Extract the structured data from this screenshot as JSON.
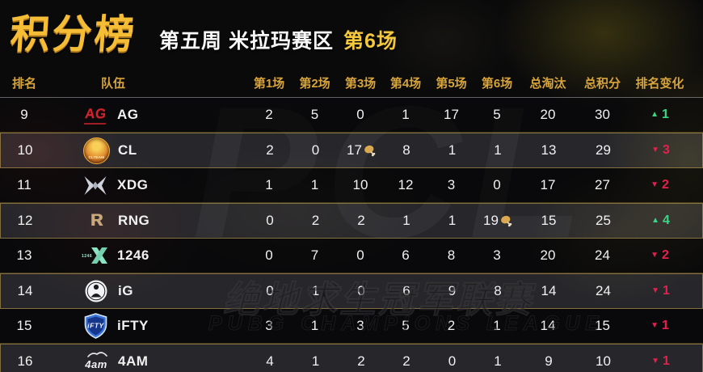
{
  "title": {
    "main": "积分榜",
    "week": "第五周 米拉玛赛区",
    "game": "第6场"
  },
  "watermarks": {
    "cn": "绝地求生冠军联赛",
    "en": "PUBG CHAMPIONS LEAGUE",
    "big": "PCL"
  },
  "colors": {
    "header_gold": "#d7a43c",
    "title_gold": "#f5bd35",
    "up_green": "#3ed488",
    "down_red": "#e3214e",
    "row_text": "#f1f1f2"
  },
  "table": {
    "headers": [
      "排名",
      "队伍",
      "第1场",
      "第2场",
      "第3场",
      "第4场",
      "第5场",
      "第6场",
      "总淘汰",
      "总积分",
      "排名变化"
    ],
    "rows": [
      {
        "rank": "9",
        "team": "AG",
        "logo_style": "ag",
        "logo_text": "AG",
        "scores": [
          "2",
          "5",
          "0",
          "1",
          "17",
          "5"
        ],
        "chicken_index": -1,
        "total_elims": "20",
        "total_points": "30",
        "change_dir": "up",
        "change_value": "1"
      },
      {
        "rank": "10",
        "team": "CL",
        "logo_style": "cl",
        "logo_text": "CLTEAM",
        "scores": [
          "2",
          "0",
          "17",
          "8",
          "1",
          "1"
        ],
        "chicken_index": 2,
        "total_elims": "13",
        "total_points": "29",
        "change_dir": "down",
        "change_value": "3"
      },
      {
        "rank": "11",
        "team": "XDG",
        "logo_style": "xdg",
        "logo_text": "",
        "scores": [
          "1",
          "1",
          "10",
          "12",
          "3",
          "0"
        ],
        "chicken_index": -1,
        "total_elims": "17",
        "total_points": "27",
        "change_dir": "down",
        "change_value": "2"
      },
      {
        "rank": "12",
        "team": "RNG",
        "logo_style": "rng",
        "logo_text": "R",
        "scores": [
          "0",
          "2",
          "2",
          "1",
          "1",
          "19"
        ],
        "chicken_index": 5,
        "total_elims": "15",
        "total_points": "25",
        "change_dir": "up",
        "change_value": "4"
      },
      {
        "rank": "13",
        "team": "1246",
        "logo_style": "t1246",
        "logo_text": "1246",
        "scores": [
          "0",
          "7",
          "0",
          "6",
          "8",
          "3"
        ],
        "chicken_index": -1,
        "total_elims": "20",
        "total_points": "24",
        "change_dir": "down",
        "change_value": "2"
      },
      {
        "rank": "14",
        "team": "iG",
        "logo_style": "ig",
        "logo_text": "",
        "scores": [
          "0",
          "1",
          "0",
          "6",
          "9",
          "8"
        ],
        "chicken_index": -1,
        "total_elims": "14",
        "total_points": "24",
        "change_dir": "down",
        "change_value": "1"
      },
      {
        "rank": "15",
        "team": "iFTY",
        "logo_style": "ifty",
        "logo_text": "iFTY",
        "scores": [
          "3",
          "1",
          "3",
          "5",
          "2",
          "1"
        ],
        "chicken_index": -1,
        "total_elims": "14",
        "total_points": "15",
        "change_dir": "down",
        "change_value": "1"
      },
      {
        "rank": "16",
        "team": "4AM",
        "logo_style": "fouram",
        "logo_text": "4am",
        "scores": [
          "4",
          "1",
          "2",
          "2",
          "0",
          "1"
        ],
        "chicken_index": -1,
        "total_elims": "9",
        "total_points": "10",
        "change_dir": "down",
        "change_value": "1"
      }
    ]
  }
}
